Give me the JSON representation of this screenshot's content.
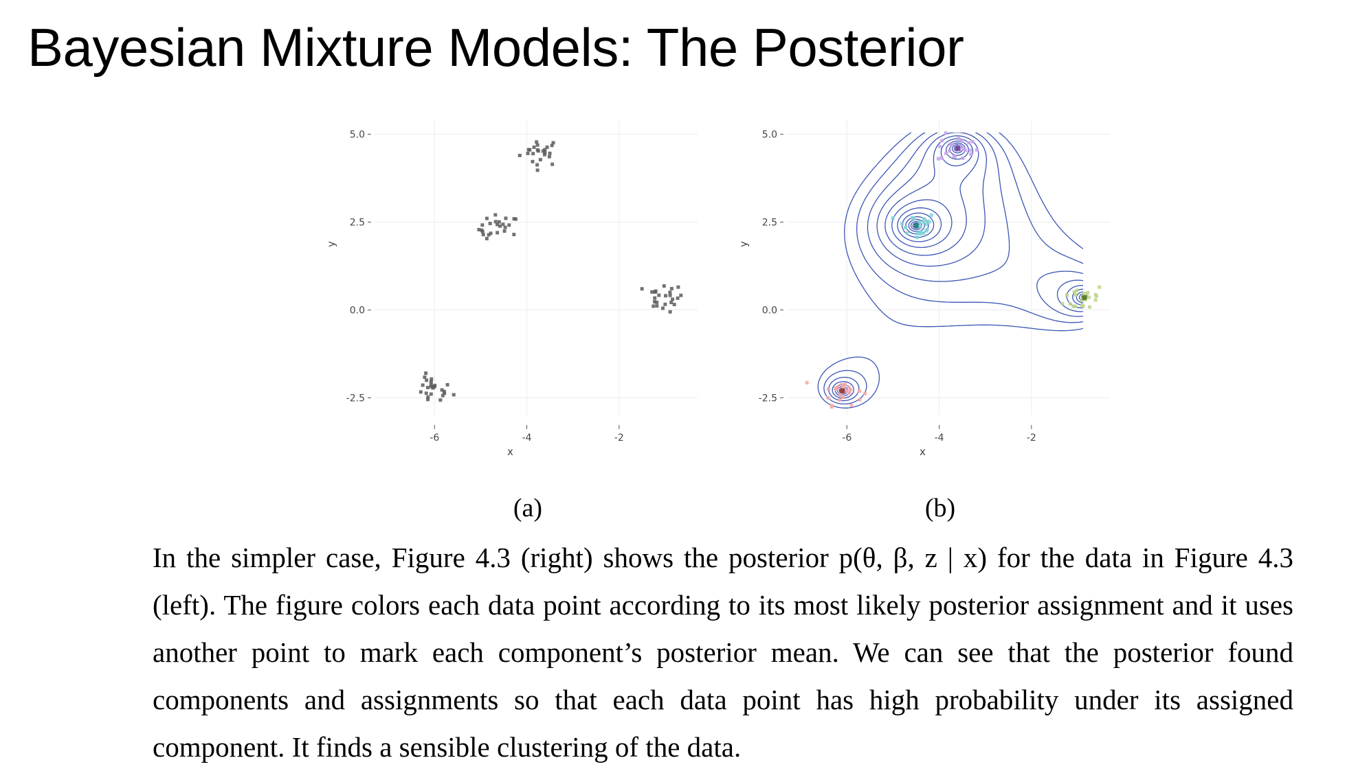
{
  "slide": {
    "title": "Bayesian Mixture Models: The Posterior"
  },
  "figure": {
    "captions": [
      "(a)",
      "(b)"
    ],
    "body_text": "In the simpler case, Figure 4.3 (right) shows the posterior p(θ, β, z | x) for the data in Figure 4.3 (left). The figure colors each data point according to its most likely posterior assignment and it uses another point to mark each component’s posterior mean. We can see that the posterior found components and assignments so that each data point has high probability under its assigned component. It finds a sensible clustering of the data."
  },
  "chart_data": [
    {
      "type": "scatter",
      "panel": "(a)",
      "xlabel": "x",
      "ylabel": "y",
      "xlim": [
        -7.3,
        -0.3
      ],
      "ylim": [
        -3.0,
        5.4
      ],
      "xticks": [
        -6,
        -4,
        -2
      ],
      "xtick_labels": [
        "-6",
        "-4",
        "-2"
      ],
      "yticks": [
        5.0,
        2.5,
        0.0,
        -2.5
      ],
      "ytick_labels": [
        "5.0",
        "2.5",
        "0.0",
        "-2.5"
      ],
      "grid": true,
      "point_color": "#5a5a5a",
      "clusters": [
        {
          "center": [
            -3.7,
            4.5
          ]
        },
        {
          "center": [
            -4.6,
            2.3
          ]
        },
        {
          "center": [
            -1.05,
            0.35
          ]
        },
        {
          "center": [
            -6.05,
            -2.3
          ]
        }
      ]
    },
    {
      "type": "scatter",
      "panel": "(b)",
      "xlabel": "x",
      "ylabel": "y",
      "xlim": [
        -7.3,
        -0.3
      ],
      "ylim": [
        -3.0,
        5.4
      ],
      "xticks": [
        -6,
        -4,
        -2
      ],
      "xtick_labels": [
        "-6",
        "-4",
        "-2"
      ],
      "yticks": [
        5.0,
        2.5,
        0.0,
        -2.5
      ],
      "ytick_labels": [
        "5.0",
        "2.5",
        "0.0",
        "-2.5"
      ],
      "grid": true,
      "contour_color": "#3a54b4",
      "contours": "posterior predictive density (concentric contour lines)",
      "clusters": [
        {
          "center": [
            -3.6,
            4.6
          ],
          "color": "#c9a2e6",
          "mean_color": "#7a4a9a"
        },
        {
          "center": [
            -4.5,
            2.4
          ],
          "color": "#7fd3d6",
          "mean_color": "#2f7f82"
        },
        {
          "center": [
            -0.85,
            0.35
          ],
          "color": "#bcd58a",
          "mean_color": "#5f7d2c"
        },
        {
          "center": [
            -6.1,
            -2.3
          ],
          "color": "#f4a8a8",
          "mean_color": "#9a4040"
        }
      ]
    }
  ]
}
